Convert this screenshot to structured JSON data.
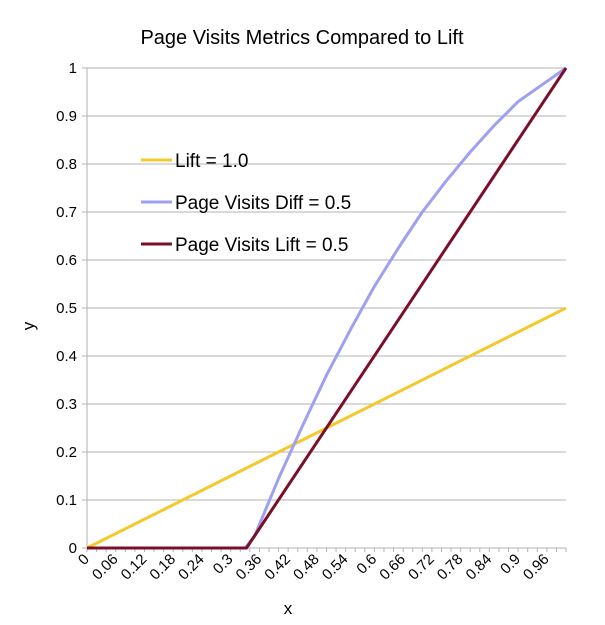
{
  "chart_data": {
    "type": "line",
    "title": "Page Visits Metrics Compared to Lift",
    "xlabel": "x",
    "ylabel": "y",
    "xlim": [
      0,
      1
    ],
    "ylim": [
      0,
      1
    ],
    "grid": true,
    "legend_position": "top-left (inside plot)",
    "x_ticks": [
      "0",
      "0.06",
      "0.12",
      "0.18",
      "0.24",
      "0.3",
      "0.36",
      "0.42",
      "0.48",
      "0.54",
      "0.6",
      "0.66",
      "0.72",
      "0.78",
      "0.84",
      "0.9",
      "0.96"
    ],
    "y_ticks": [
      "0",
      "0.1",
      "0.2",
      "0.3",
      "0.4",
      "0.5",
      "0.6",
      "0.7",
      "0.8",
      "0.9",
      "1"
    ],
    "series": [
      {
        "name": "Lift = 1.0",
        "color": "#f4c92b",
        "x": [
          0,
          1
        ],
        "y": [
          0,
          0.5
        ]
      },
      {
        "name": "Page Visits Diff = 0.5",
        "color": "#9ea0f0",
        "x": [
          0,
          0.33,
          0.35,
          0.4,
          0.45,
          0.5,
          0.55,
          0.6,
          0.65,
          0.7,
          0.75,
          0.8,
          0.85,
          0.9,
          0.95,
          1.0
        ],
        "y": [
          0,
          0,
          0.025,
          0.145,
          0.255,
          0.36,
          0.455,
          0.545,
          0.625,
          0.7,
          0.765,
          0.825,
          0.88,
          0.93,
          0.965,
          1.0
        ]
      },
      {
        "name": "Page Visits Lift = 0.5",
        "color": "#7b0f2a",
        "x": [
          0,
          0.333,
          1.0
        ],
        "y": [
          0,
          0,
          1.0
        ]
      }
    ]
  }
}
